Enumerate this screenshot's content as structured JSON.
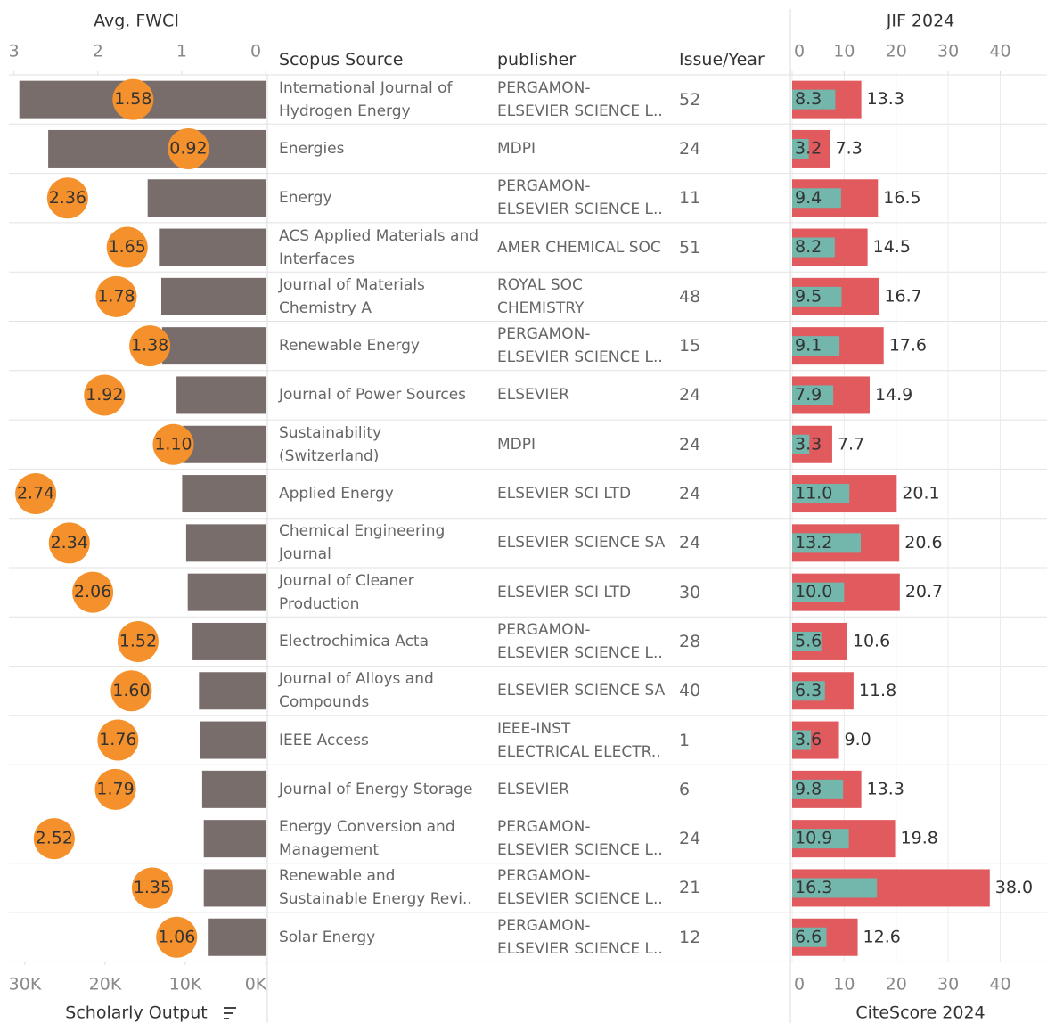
{
  "chart_data": [
    {
      "type": "bar",
      "xlabel": "Scholarly Output",
      "x2label": "Avg. FWCI",
      "reversed": true,
      "grid": false,
      "categories": [
        "International Journal of\nHydrogen Energy",
        "Energies",
        "Energy",
        "ACS Applied Materials and\nInterfaces",
        "Journal of Materials\nChemistry A",
        "Renewable Energy",
        "Journal of Power Sources",
        "Sustainability\n(Switzerland)",
        "Applied Energy",
        "Chemical Engineering\nJournal",
        "Journal of Cleaner\nProduction",
        "Electrochimica Acta",
        "Journal of Alloys and\nCompounds",
        "IEEE Access",
        "Journal of Energy Storage",
        "Energy Conversion and\nManagement",
        "Renewable and\nSustainable Energy Revi..",
        "Solar Energy"
      ],
      "xlim": [
        0,
        32000
      ],
      "xticks": [
        {
          "value": 30000,
          "label": "30K"
        },
        {
          "value": 20000,
          "label": "20K"
        },
        {
          "value": 10000,
          "label": "10K"
        },
        {
          "value": 0,
          "label": "0K"
        }
      ],
      "x2lim": [
        0,
        3.06
      ],
      "x2ticks": [
        3,
        2,
        1,
        0
      ],
      "series": [
        {
          "color": "#786d6a",
          "values": [
            30700,
            27100,
            14700,
            13300,
            13000,
            12900,
            11100,
            10300,
            10400,
            9900,
            9700,
            9100,
            8300,
            8200,
            7900,
            7700,
            7700,
            7200
          ]
        },
        {
          "color": "#f5912c",
          "axis": "x2",
          "marker": "circle",
          "values": [
            1.58,
            0.92,
            2.36,
            1.65,
            1.78,
            1.38,
            1.92,
            1.1,
            2.74,
            2.34,
            2.06,
            1.52,
            1.6,
            1.76,
            1.79,
            2.52,
            1.35,
            1.06
          ],
          "value_labels": [
            "1.58",
            "0.92",
            "2.36",
            "1.65",
            "1.78",
            "1.38",
            "1.92",
            "1.10",
            "2.74",
            "2.34",
            "2.06",
            "1.52",
            "1.60",
            "1.76",
            "1.79",
            "2.52",
            "1.35",
            "1.06"
          ]
        }
      ]
    },
    {
      "type": "bar",
      "xlabel": "CiteScore 2024",
      "x2label": "JIF 2024",
      "grid": true,
      "xlim": [
        0,
        49
      ],
      "xticks": [
        0,
        10,
        20,
        30,
        40
      ],
      "x2lim": [
        0,
        49
      ],
      "x2ticks": [
        0,
        10,
        20,
        30,
        40
      ],
      "series": [
        {
          "color": "#e05a5e",
          "values": [
            13.3,
            7.3,
            16.5,
            14.5,
            16.7,
            17.6,
            14.9,
            7.7,
            20.1,
            20.6,
            20.7,
            10.6,
            11.8,
            9.0,
            13.3,
            19.8,
            38.0,
            12.6
          ],
          "value_labels": [
            "13.3",
            "7.3",
            "16.5",
            "14.5",
            "16.7",
            "17.6",
            "14.9",
            "7.7",
            "20.1",
            "20.6",
            "20.7",
            "10.6",
            "11.8",
            "9.0",
            "13.3",
            "19.8",
            "38.0",
            "12.6"
          ]
        },
        {
          "color": "#72b6ac",
          "axis": "x2",
          "values": [
            8.3,
            3.2,
            9.4,
            8.2,
            9.5,
            9.1,
            7.9,
            3.3,
            11.0,
            13.2,
            10.0,
            5.6,
            6.3,
            3.6,
            9.8,
            10.9,
            16.3,
            6.6
          ],
          "value_labels": [
            "8.3",
            "3.2",
            "9.4",
            "8.2",
            "9.5",
            "9.1",
            "7.9",
            "3.3",
            "11.0",
            "13.2",
            "10.0",
            "5.6",
            "6.3",
            "3.6",
            "9.8",
            "10.9",
            "16.3",
            "6.6"
          ]
        }
      ]
    }
  ],
  "table": {
    "columns": [
      "Scopus Source",
      "publisher",
      "Issue/Year"
    ],
    "publisher": [
      "PERGAMON-\nELSEVIER SCIENCE L..",
      "MDPI",
      "PERGAMON-\nELSEVIER SCIENCE L..",
      "AMER CHEMICAL SOC",
      "ROYAL SOC\nCHEMISTRY",
      "PERGAMON-\nELSEVIER SCIENCE L..",
      "ELSEVIER",
      "MDPI",
      "ELSEVIER SCI LTD",
      "ELSEVIER SCIENCE SA",
      "ELSEVIER SCI LTD",
      "PERGAMON-\nELSEVIER SCIENCE L..",
      "ELSEVIER SCIENCE SA",
      "IEEE-INST\nELECTRICAL ELECTR..",
      "ELSEVIER",
      "PERGAMON-\nELSEVIER SCIENCE L..",
      "PERGAMON-\nELSEVIER SCIENCE L..",
      "PERGAMON-\nELSEVIER SCIENCE L.."
    ],
    "issue_per_year": [
      52,
      24,
      11,
      51,
      48,
      15,
      24,
      24,
      24,
      24,
      30,
      28,
      40,
      1,
      6,
      24,
      21,
      12
    ]
  }
}
